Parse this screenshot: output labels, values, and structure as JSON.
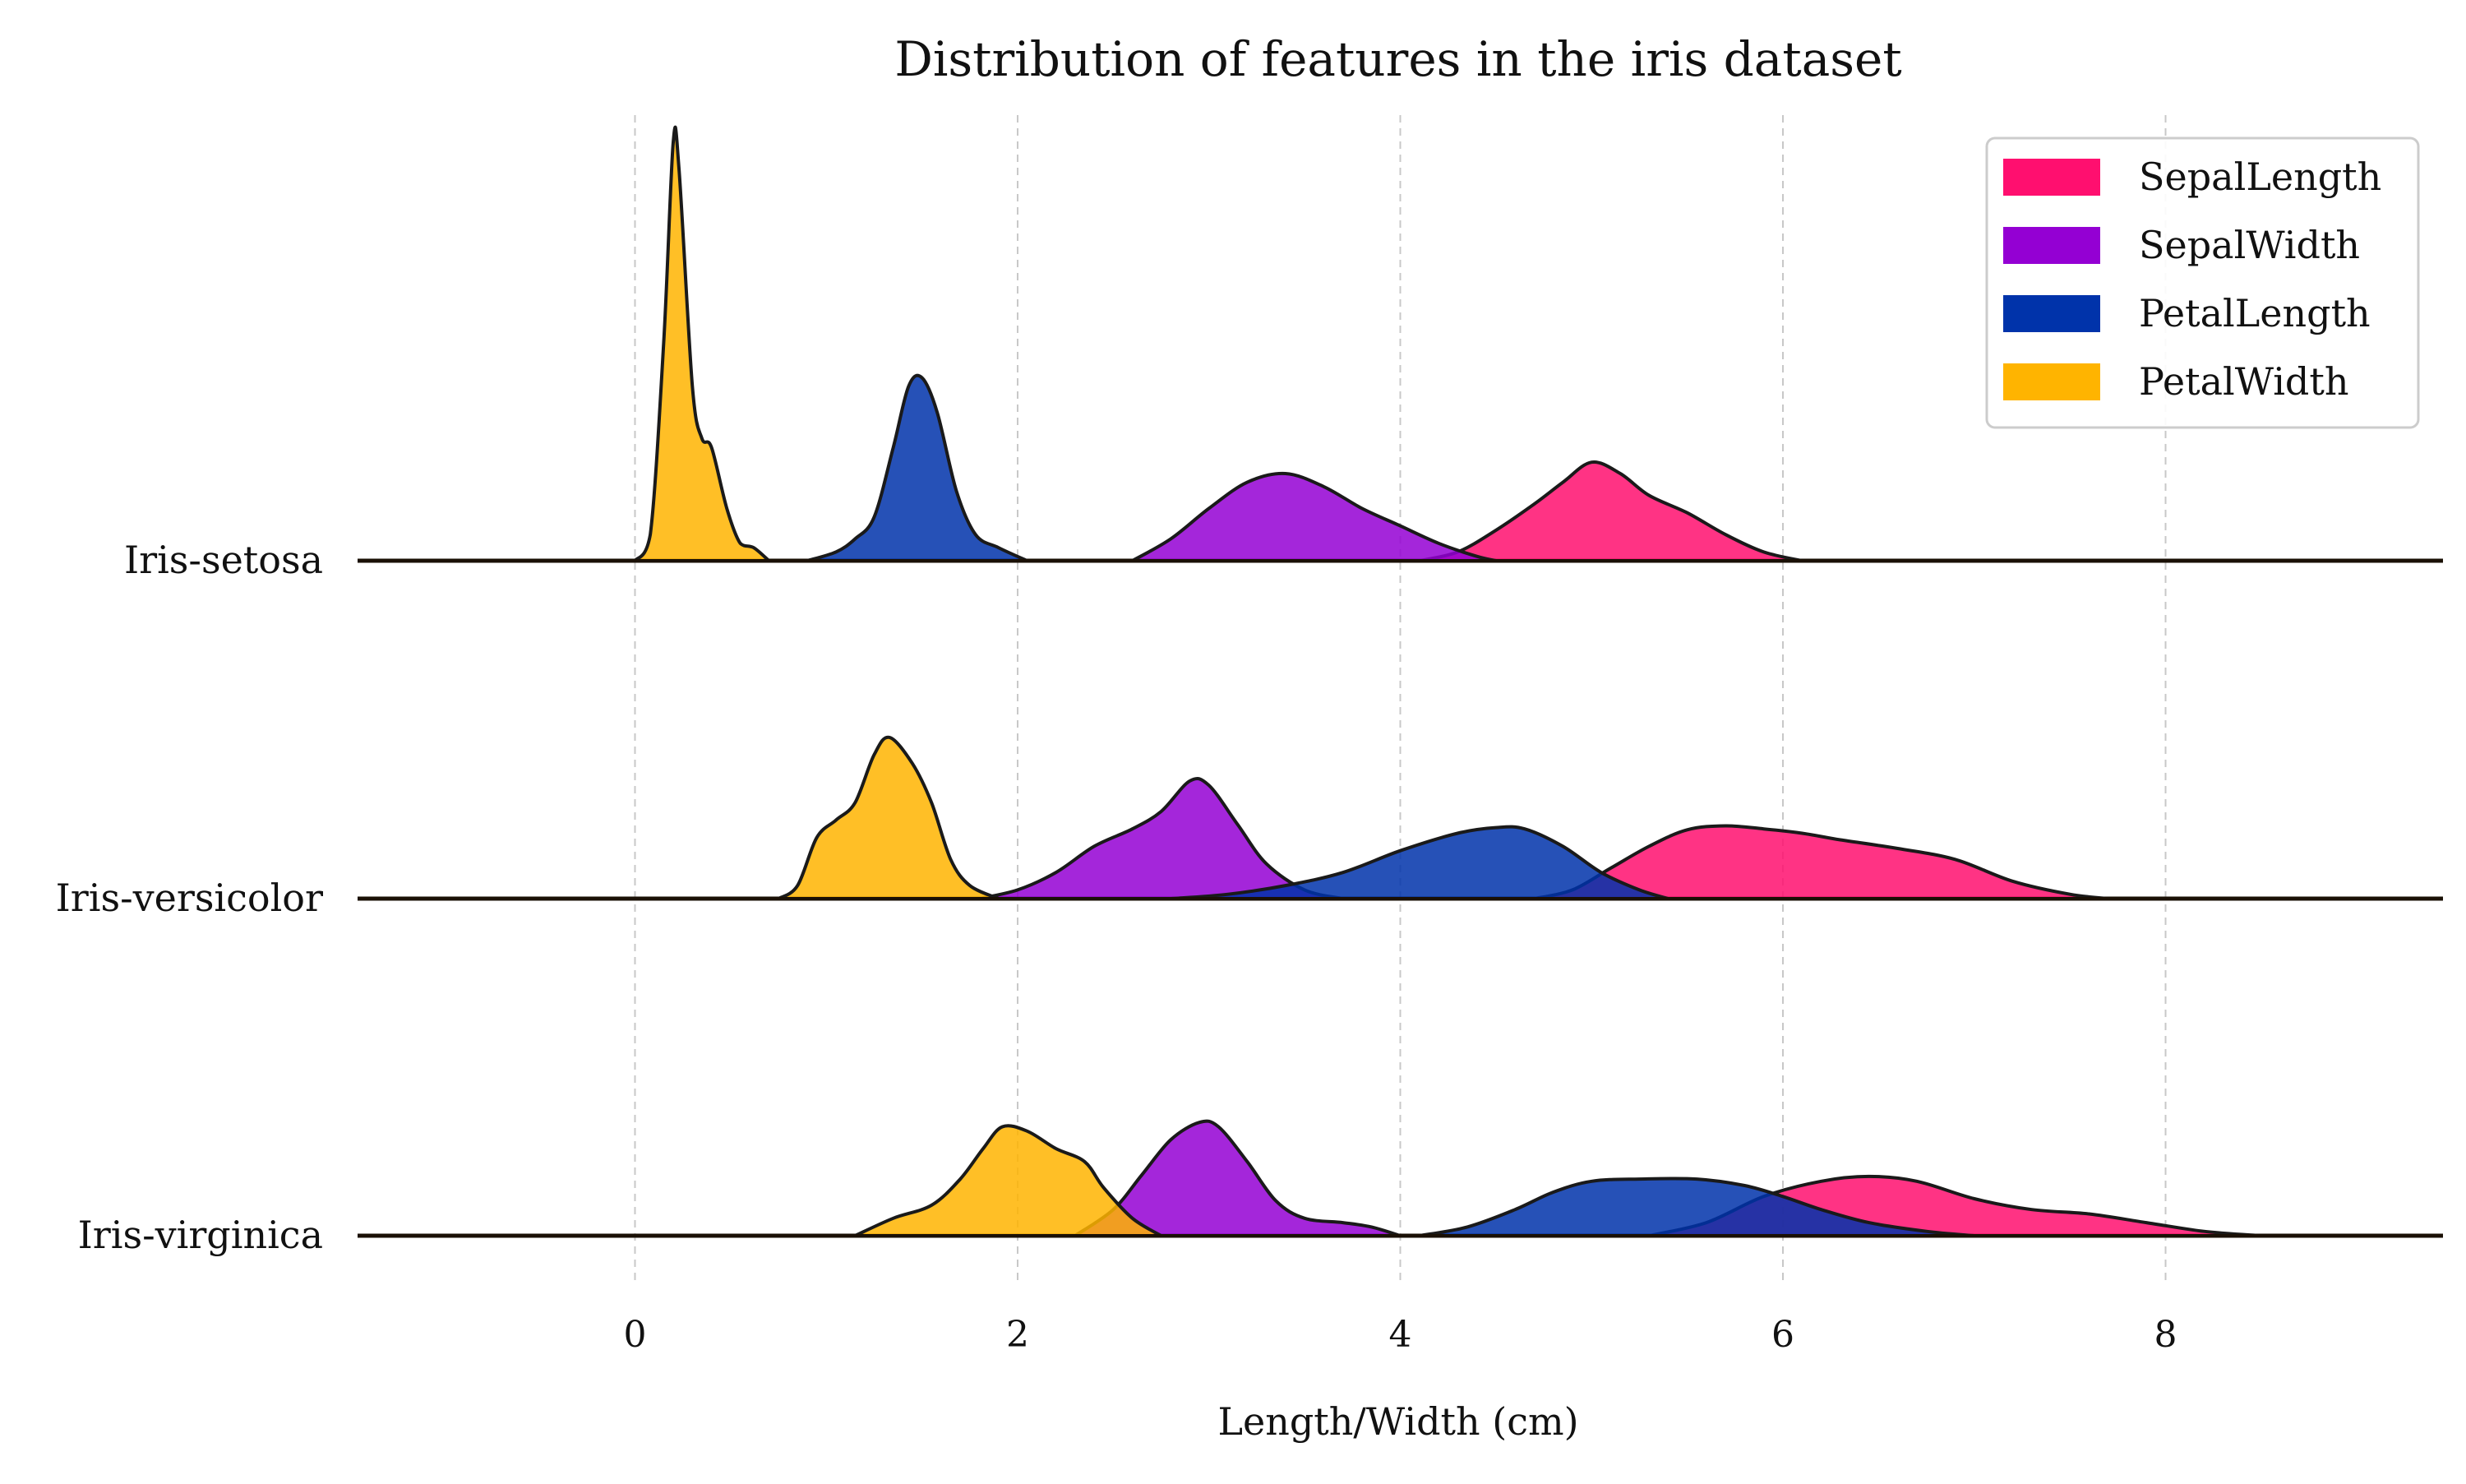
{
  "chart_data": {
    "type": "area",
    "title": "Distribution of features in the iris dataset",
    "xlabel": "Length/Width (cm)",
    "ylabel": "",
    "xlim": [
      -1.45,
      9.45
    ],
    "xticks": [
      0,
      2,
      4,
      6,
      8
    ],
    "grid": "vertical-dashed",
    "legend_position": "top-right",
    "legend": [
      "SepalLength",
      "SepalWidth",
      "PetalLength",
      "PetalWidth"
    ],
    "series_colors": {
      "SepalLength": "#ff0f6f",
      "SepalWidth": "#9400d3",
      "PetalLength": "#0033aa",
      "PetalWidth": "#ffb400"
    },
    "rows": [
      {
        "label": "Iris-setosa",
        "peak_scale": 1.0,
        "series": [
          {
            "name": "SepalLength",
            "points": [
              [
                4.1,
                0
              ],
              [
                4.3,
                0.02
              ],
              [
                4.5,
                0.07
              ],
              [
                4.7,
                0.13
              ],
              [
                4.85,
                0.18
              ],
              [
                5.0,
                0.226
              ],
              [
                5.15,
                0.2
              ],
              [
                5.3,
                0.15
              ],
              [
                5.5,
                0.11
              ],
              [
                5.7,
                0.06
              ],
              [
                5.9,
                0.02
              ],
              [
                6.1,
                0
              ]
            ]
          },
          {
            "name": "SepalWidth",
            "points": [
              [
                2.6,
                0
              ],
              [
                2.8,
                0.05
              ],
              [
                3.0,
                0.12
              ],
              [
                3.2,
                0.18
              ],
              [
                3.4,
                0.2
              ],
              [
                3.6,
                0.17
              ],
              [
                3.8,
                0.12
              ],
              [
                4.0,
                0.08
              ],
              [
                4.2,
                0.04
              ],
              [
                4.4,
                0.01
              ],
              [
                4.5,
                0
              ]
            ]
          },
          {
            "name": "PetalLength",
            "points": [
              [
                0.9,
                0
              ],
              [
                1.05,
                0.02
              ],
              [
                1.15,
                0.05
              ],
              [
                1.25,
                0.1
              ],
              [
                1.35,
                0.26
              ],
              [
                1.43,
                0.4
              ],
              [
                1.5,
                0.42
              ],
              [
                1.58,
                0.34
              ],
              [
                1.68,
                0.16
              ],
              [
                1.78,
                0.06
              ],
              [
                1.9,
                0.03
              ],
              [
                2.05,
                0
              ]
            ]
          },
          {
            "name": "PetalWidth",
            "points": [
              [
                0.0,
                0
              ],
              [
                0.08,
                0.06
              ],
              [
                0.15,
                0.5
              ],
              [
                0.2,
                0.96
              ],
              [
                0.23,
                0.9
              ],
              [
                0.3,
                0.4
              ],
              [
                0.35,
                0.28
              ],
              [
                0.4,
                0.26
              ],
              [
                0.48,
                0.12
              ],
              [
                0.55,
                0.04
              ],
              [
                0.62,
                0.03
              ],
              [
                0.7,
                0
              ]
            ]
          }
        ]
      },
      {
        "label": "Iris-versicolor",
        "peak_scale": 1.0,
        "series": [
          {
            "name": "SepalLength",
            "points": [
              [
                4.7,
                0
              ],
              [
                4.9,
                0.02
              ],
              [
                5.1,
                0.07
              ],
              [
                5.3,
                0.12
              ],
              [
                5.5,
                0.158
              ],
              [
                5.7,
                0.167
              ],
              [
                5.9,
                0.16
              ],
              [
                6.1,
                0.15
              ],
              [
                6.3,
                0.135
              ],
              [
                6.6,
                0.115
              ],
              [
                6.9,
                0.09
              ],
              [
                7.2,
                0.04
              ],
              [
                7.5,
                0.01
              ],
              [
                7.7,
                0
              ]
            ]
          },
          {
            "name": "SepalWidth",
            "points": [
              [
                1.8,
                0
              ],
              [
                2.0,
                0.02
              ],
              [
                2.2,
                0.06
              ],
              [
                2.4,
                0.12
              ],
              [
                2.6,
                0.16
              ],
              [
                2.75,
                0.2
              ],
              [
                2.9,
                0.27
              ],
              [
                3.0,
                0.26
              ],
              [
                3.15,
                0.17
              ],
              [
                3.3,
                0.08
              ],
              [
                3.5,
                0.02
              ],
              [
                3.7,
                0
              ]
            ]
          },
          {
            "name": "PetalLength",
            "points": [
              [
                2.8,
                0
              ],
              [
                3.1,
                0.01
              ],
              [
                3.4,
                0.03
              ],
              [
                3.7,
                0.06
              ],
              [
                4.0,
                0.11
              ],
              [
                4.3,
                0.15
              ],
              [
                4.5,
                0.163
              ],
              [
                4.65,
                0.16
              ],
              [
                4.85,
                0.12
              ],
              [
                5.05,
                0.06
              ],
              [
                5.25,
                0.02
              ],
              [
                5.4,
                0
              ]
            ]
          },
          {
            "name": "PetalWidth",
            "points": [
              [
                0.75,
                0
              ],
              [
                0.85,
                0.03
              ],
              [
                0.95,
                0.14
              ],
              [
                1.05,
                0.18
              ],
              [
                1.15,
                0.22
              ],
              [
                1.25,
                0.33
              ],
              [
                1.33,
                0.37
              ],
              [
                1.45,
                0.31
              ],
              [
                1.55,
                0.22
              ],
              [
                1.65,
                0.09
              ],
              [
                1.75,
                0.03
              ],
              [
                1.9,
                0
              ]
            ]
          }
        ]
      },
      {
        "label": "Iris-virginica",
        "peak_scale": 1.0,
        "series": [
          {
            "name": "SepalLength",
            "points": [
              [
                5.3,
                0
              ],
              [
                5.6,
                0.03
              ],
              [
                5.9,
                0.09
              ],
              [
                6.2,
                0.125
              ],
              [
                6.45,
                0.136
              ],
              [
                6.7,
                0.125
              ],
              [
                7.0,
                0.085
              ],
              [
                7.3,
                0.06
              ],
              [
                7.6,
                0.05
              ],
              [
                7.9,
                0.03
              ],
              [
                8.2,
                0.01
              ],
              [
                8.5,
                0
              ]
            ]
          },
          {
            "name": "SepalWidth",
            "points": [
              [
                2.3,
                0
              ],
              [
                2.5,
                0.06
              ],
              [
                2.65,
                0.14
              ],
              [
                2.8,
                0.22
              ],
              [
                2.95,
                0.26
              ],
              [
                3.05,
                0.25
              ],
              [
                3.2,
                0.17
              ],
              [
                3.35,
                0.08
              ],
              [
                3.5,
                0.04
              ],
              [
                3.7,
                0.03
              ],
              [
                3.85,
                0.02
              ],
              [
                4.0,
                0
              ]
            ]
          },
          {
            "name": "PetalLength",
            "points": [
              [
                4.1,
                0
              ],
              [
                4.35,
                0.02
              ],
              [
                4.6,
                0.06
              ],
              [
                4.8,
                0.1
              ],
              [
                5.0,
                0.125
              ],
              [
                5.25,
                0.13
              ],
              [
                5.55,
                0.13
              ],
              [
                5.8,
                0.115
              ],
              [
                6.0,
                0.09
              ],
              [
                6.2,
                0.06
              ],
              [
                6.45,
                0.03
              ],
              [
                6.75,
                0.01
              ],
              [
                7.0,
                0
              ]
            ]
          },
          {
            "name": "PetalWidth",
            "points": [
              [
                1.15,
                0
              ],
              [
                1.35,
                0.04
              ],
              [
                1.55,
                0.07
              ],
              [
                1.7,
                0.13
              ],
              [
                1.82,
                0.2
              ],
              [
                1.92,
                0.25
              ],
              [
                2.05,
                0.24
              ],
              [
                2.2,
                0.2
              ],
              [
                2.35,
                0.17
              ],
              [
                2.45,
                0.11
              ],
              [
                2.6,
                0.04
              ],
              [
                2.75,
                0
              ]
            ]
          }
        ]
      }
    ]
  }
}
